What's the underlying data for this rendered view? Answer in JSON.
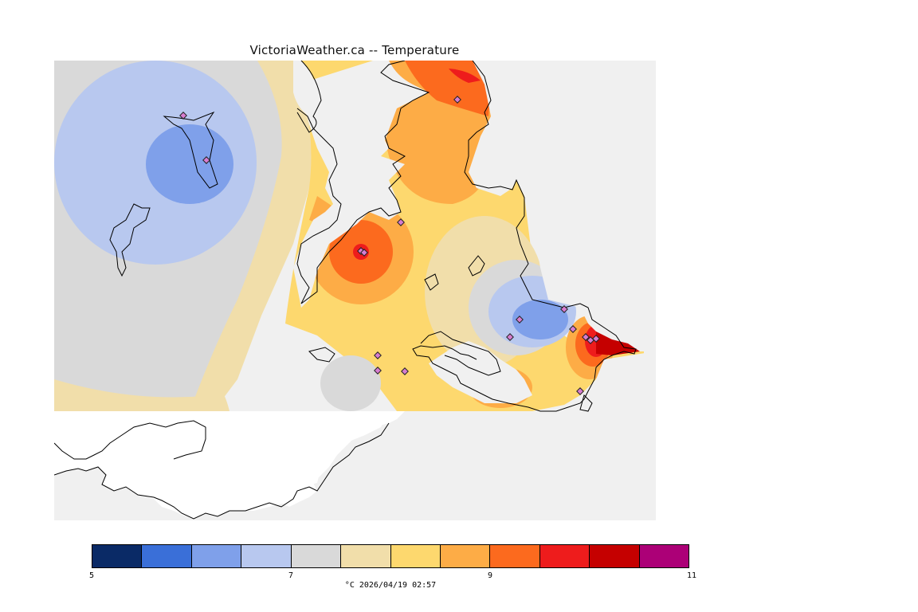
{
  "title": "VictoriaWeather.ca -- Temperature",
  "caption": "°C  2026/04/19 02:57",
  "legend": {
    "colors": [
      "#0a2a66",
      "#3a6fd8",
      "#7fa0ea",
      "#b8c8ef",
      "#d9d9d9",
      "#f1deaa",
      "#fdd86e",
      "#fdac46",
      "#fc6a1e",
      "#ee1c1c",
      "#c50000",
      "#ac0077"
    ],
    "ticks": [
      {
        "label": "5",
        "value": 5
      },
      {
        "label": "7",
        "value": 7
      },
      {
        "label": "9",
        "value": 9
      },
      {
        "label": "11",
        "value": 11
      }
    ],
    "min": 5,
    "max": 11
  },
  "palette": {
    "sea": "#f0f0f0",
    "land_nodata": "#ffffff",
    "coast": "#000000",
    "station_marker": "#d77dd0"
  },
  "stations_count_note": ""
}
